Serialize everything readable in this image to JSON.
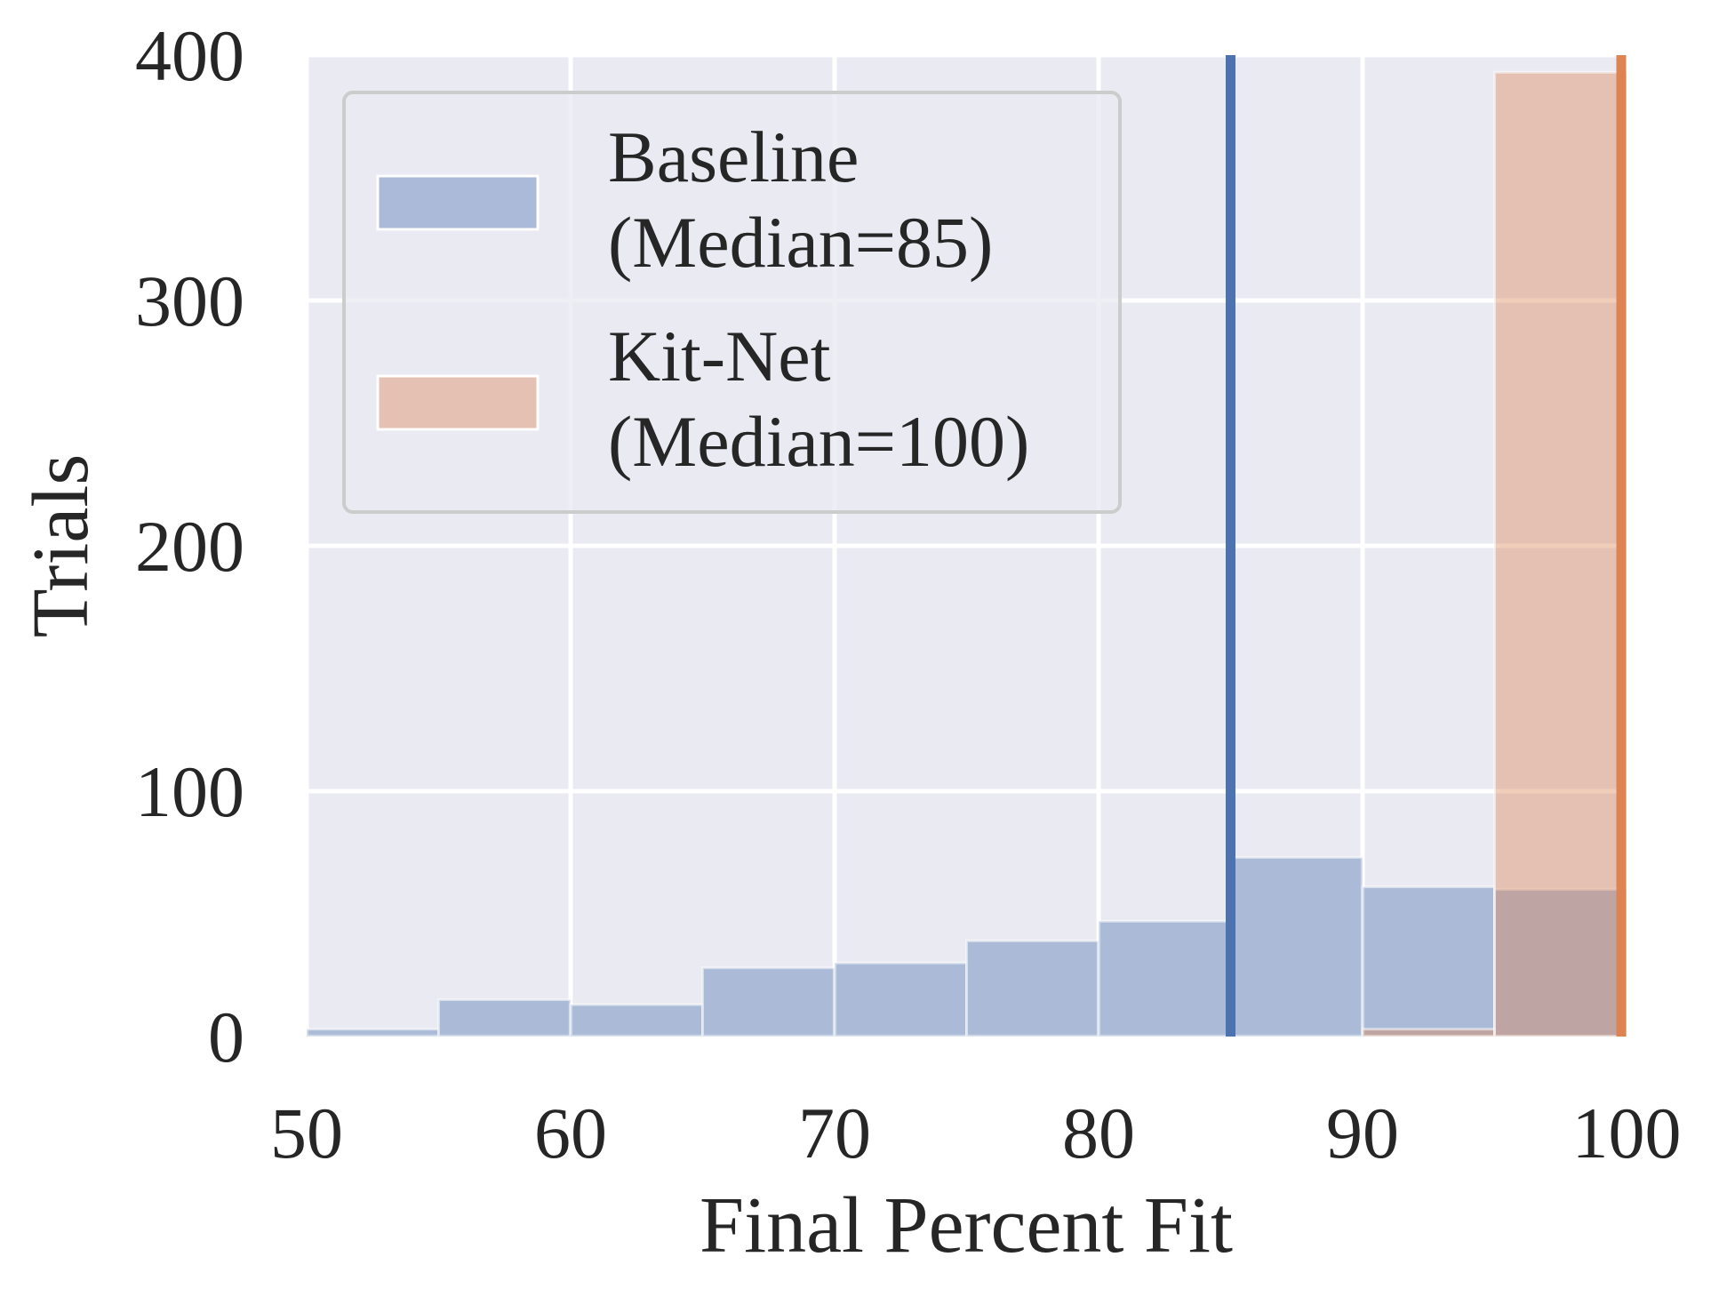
{
  "chart_data": {
    "type": "bar",
    "xlabel": "Final Percent Fit",
    "ylabel": "Trials",
    "xlim": [
      50,
      100
    ],
    "ylim": [
      0,
      400
    ],
    "x_ticks": [
      50,
      60,
      70,
      80,
      90,
      100
    ],
    "y_ticks": [
      0,
      100,
      200,
      300,
      400
    ],
    "grid": true,
    "legend_position": "upper-left",
    "bin_edges": [
      50,
      55,
      60,
      65,
      70,
      75,
      80,
      85,
      90,
      95,
      100
    ],
    "series": [
      {
        "name": "Baseline",
        "legend_lines": [
          "Baseline",
          "(Median=85)"
        ],
        "color": "#4c72b0",
        "values": [
          3,
          15,
          13,
          28,
          30,
          39,
          47,
          73,
          61,
          60
        ],
        "median": 85
      },
      {
        "name": "Kit-Net",
        "legend_lines": [
          "Kit-Net",
          "(Median=100)"
        ],
        "color": "#dd8452",
        "values": [
          0,
          0,
          0,
          0,
          0,
          0,
          0,
          0,
          3,
          393
        ],
        "median": 100
      }
    ],
    "background_color": "#eaeaf2",
    "grid_color": "#ffffff"
  }
}
